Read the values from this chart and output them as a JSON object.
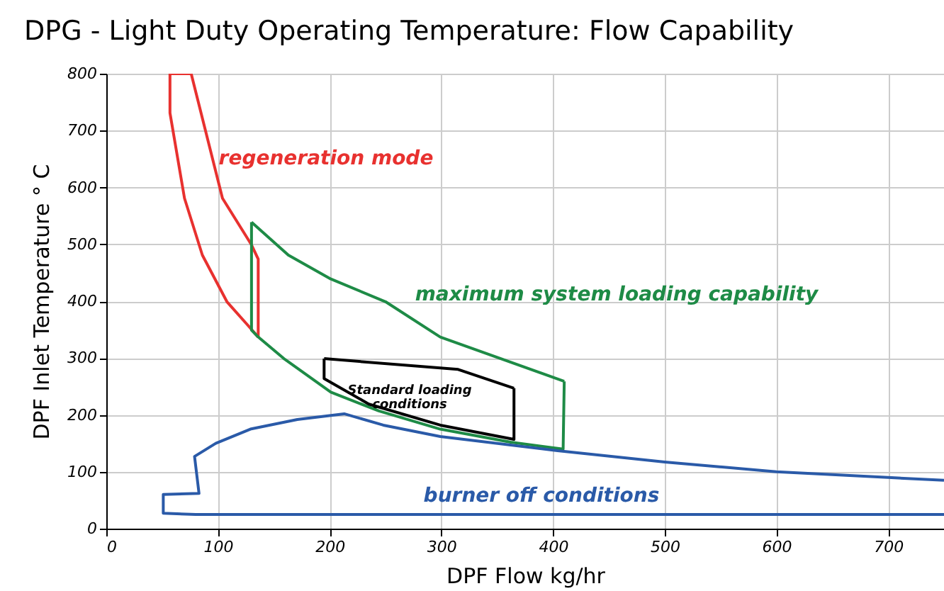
{
  "chart_data": {
    "type": "line",
    "title": "DPG - Light Duty Operating Temperature: Flow Capability",
    "xlabel": "DPF Flow kg/hr",
    "ylabel": "DPF Inlet Temperature ° C",
    "xlim": [
      0,
      750
    ],
    "xticks": [
      0,
      100,
      200,
      300,
      400,
      500,
      600,
      700
    ],
    "ylim": [
      0,
      800
    ],
    "yticks": [
      0,
      100,
      200,
      300,
      400,
      500,
      600,
      700,
      800
    ],
    "grid": true,
    "line_style": "solid",
    "series": [
      {
        "color": "#e8312f",
        "x": [
          136,
          127,
          108,
          86,
          70,
          57,
          57,
          76
        ],
        "values": [
          337,
          357,
          399,
          481,
          581,
          731,
          800,
          800
        ]
      },
      {
        "color": "#e8312f",
        "x": [
          76,
          104,
          130,
          136,
          136
        ],
        "values": [
          800,
          581,
          499,
          474,
          337
        ]
      },
      {
        "color": "#1e8b46",
        "x": [
          130,
          130,
          136,
          159,
          201,
          244,
          299,
          362,
          409,
          410
        ],
        "values": [
          539,
          349,
          337,
          299,
          240,
          207,
          175,
          152,
          140,
          259
        ]
      },
      {
        "color": "#1e8b46",
        "x": [
          410,
          299,
          250,
          201,
          163,
          130
        ],
        "values": [
          259,
          337,
          399,
          439,
          481,
          539
        ]
      },
      {
        "color": "#000000",
        "x": [
          195,
          195,
          235,
          299,
          365,
          365
        ],
        "values": [
          299,
          264,
          219,
          182,
          157,
          247
        ]
      },
      {
        "color": "#000000",
        "x": [
          365,
          315,
          195
        ],
        "values": [
          247,
          280,
          299
        ]
      },
      {
        "color": "#2a5aa8",
        "x": [
          750,
          700,
          600,
          500,
          404,
          299,
          248,
          213,
          171,
          129,
          98,
          79,
          83,
          51,
          51,
          80,
          750
        ],
        "values": [
          85,
          90,
          100,
          117,
          137,
          162,
          182,
          202,
          192,
          175,
          150,
          127,
          62,
          60,
          27,
          25,
          25
        ]
      }
    ],
    "annotations": [
      "regeneration mode",
      "maximum system loading capability",
      "Standard loading\nconditions",
      "burner off conditions"
    ]
  }
}
